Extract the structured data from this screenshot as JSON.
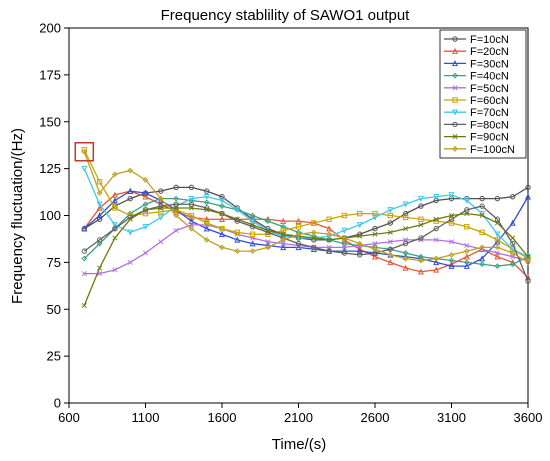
{
  "chart_data": {
    "type": "line",
    "title": "Frequency stablility of SAWO1 output",
    "xlabel": "Time/(s)",
    "ylabel": "Frequency fluctuation/(Hz)",
    "xlim": [
      600,
      3600
    ],
    "ylim": [
      0,
      200
    ],
    "xticks": [
      600,
      1100,
      1600,
      2100,
      2600,
      3100,
      3600
    ],
    "yticks": [
      0,
      25,
      50,
      75,
      100,
      125,
      150,
      175,
      200
    ],
    "legend_position": "top-right",
    "grid": false,
    "highlight_box": {
      "x": 700,
      "y": 134,
      "color": "#c0392b"
    },
    "x": [
      700,
      800,
      900,
      1000,
      1100,
      1200,
      1300,
      1400,
      1500,
      1600,
      1700,
      1800,
      1900,
      2000,
      2100,
      2200,
      2300,
      2400,
      2500,
      2600,
      2700,
      2800,
      2900,
      3000,
      3100,
      3200,
      3300,
      3400,
      3500,
      3600
    ],
    "series": [
      {
        "name": "F=10cN",
        "color": "#505050",
        "marker": "circle",
        "values": [
          93,
          98,
          105,
          109,
          112,
          113,
          115,
          115,
          113,
          110,
          104,
          98,
          93,
          90,
          88,
          87,
          87,
          88,
          90,
          93,
          96,
          101,
          105,
          108,
          109,
          109,
          109,
          109,
          110,
          115
        ]
      },
      {
        "name": "F=20cN",
        "color": "#e05a3a",
        "marker": "triangle",
        "values": [
          93,
          104,
          111,
          113,
          110,
          106,
          102,
          99,
          98,
          98,
          98,
          98,
          98,
          97,
          97,
          96,
          93,
          87,
          82,
          78,
          75,
          72,
          70,
          71,
          74,
          78,
          82,
          78,
          75,
          67
        ]
      },
      {
        "name": "F=30cN",
        "color": "#3050d0",
        "marker": "triangle",
        "values": [
          93,
          100,
          108,
          113,
          112,
          108,
          103,
          97,
          93,
          90,
          87,
          85,
          84,
          83,
          83,
          82,
          81,
          81,
          81,
          80,
          79,
          78,
          77,
          75,
          73,
          73,
          77,
          86,
          96,
          110
        ]
      },
      {
        "name": "F=40cN",
        "color": "#3aa080",
        "marker": "diamond",
        "values": [
          77,
          85,
          93,
          101,
          106,
          109,
          109,
          108,
          107,
          105,
          103,
          100,
          97,
          94,
          91,
          89,
          87,
          85,
          84,
          83,
          82,
          80,
          78,
          77,
          76,
          75,
          74,
          73,
          74,
          78
        ]
      },
      {
        "name": "F=50cN",
        "color": "#b070e0",
        "marker": "x",
        "values": [
          69,
          69,
          71,
          75,
          80,
          86,
          92,
          95,
          95,
          93,
          90,
          88,
          86,
          85,
          84,
          83,
          83,
          83,
          84,
          85,
          86,
          87,
          87,
          87,
          86,
          84,
          82,
          80,
          78,
          76
        ]
      },
      {
        "name": "F=60cN",
        "color": "#c9a400",
        "marker": "square",
        "values": [
          135,
          118,
          104,
          100,
          101,
          102,
          103,
          100,
          96,
          93,
          91,
          90,
          90,
          92,
          94,
          96,
          98,
          100,
          101,
          101,
          100,
          99,
          98,
          97,
          96,
          94,
          91,
          87,
          82,
          77
        ]
      },
      {
        "name": "F=70cN",
        "color": "#40c8e8",
        "marker": "triangle-down",
        "values": [
          125,
          106,
          95,
          91,
          94,
          99,
          105,
          109,
          110,
          108,
          103,
          97,
          92,
          89,
          88,
          88,
          89,
          92,
          95,
          99,
          103,
          106,
          109,
          110,
          111,
          108,
          101,
          90,
          82,
          78
        ]
      },
      {
        "name": "F=80cN",
        "color": "#606060",
        "marker": "circle",
        "values": [
          81,
          87,
          93,
          99,
          103,
          105,
          106,
          106,
          104,
          101,
          97,
          94,
          91,
          88,
          85,
          83,
          81,
          80,
          79,
          80,
          82,
          85,
          88,
          93,
          98,
          103,
          105,
          98,
          85,
          65
        ]
      },
      {
        "name": "F=90cN",
        "color": "#6a7a10",
        "marker": "x",
        "values": [
          52,
          72,
          88,
          98,
          103,
          104,
          104,
          104,
          103,
          101,
          98,
          95,
          92,
          90,
          89,
          88,
          87,
          88,
          89,
          90,
          91,
          93,
          95,
          98,
          100,
          101,
          100,
          96,
          88,
          78
        ]
      },
      {
        "name": "F=100cN",
        "color": "#c0a020",
        "marker": "diamond",
        "values": [
          134,
          112,
          122,
          124,
          119,
          109,
          100,
          93,
          87,
          83,
          81,
          81,
          83,
          87,
          90,
          91,
          90,
          88,
          85,
          82,
          79,
          77,
          76,
          77,
          79,
          81,
          83,
          83,
          80,
          75
        ]
      }
    ]
  }
}
